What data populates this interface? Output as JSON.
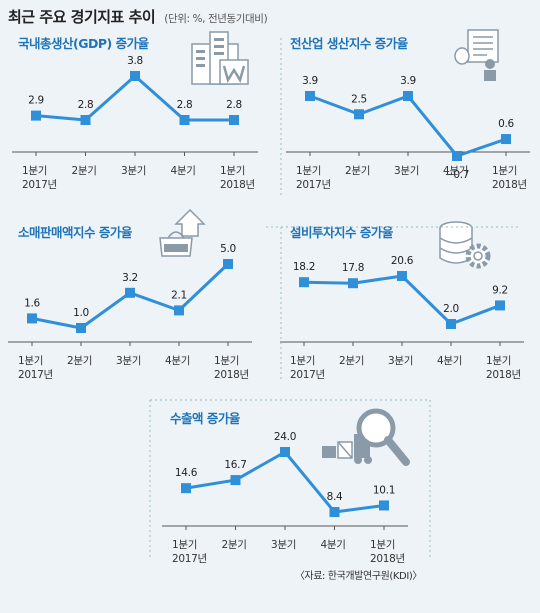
{
  "header": {
    "title": "최근 주요 경기지표 추이",
    "unit": "(단위: %, 전년동기대비)"
  },
  "source": "〈자료: 한국개발연구원(KDI)〉",
  "chart_data": [
    {
      "type": "line",
      "title": "국내총생산(GDP) 증가율",
      "categories": [
        "1분기|2017년",
        "2분기",
        "3분기",
        "4분기",
        "1분기|2018년"
      ],
      "values": [
        2.9,
        2.8,
        3.8,
        2.8,
        2.8
      ],
      "labels": [
        "2.9",
        "2.8",
        "3.8",
        "2.8",
        "2.8"
      ],
      "color": "#2f8fd8",
      "icon": "building-document-icon"
    },
    {
      "type": "line",
      "title": "전산업 생산지수 증가율",
      "categories": [
        "1분기|2017년",
        "2분기",
        "3분기",
        "4분기",
        "1분기|2018년"
      ],
      "values": [
        3.9,
        2.5,
        3.9,
        -0.7,
        0.6
      ],
      "labels": [
        "3.9",
        "2.5",
        "3.9",
        "-0.7",
        "0.6"
      ],
      "color": "#2f8fd8",
      "icon": "worker-document-icon"
    },
    {
      "type": "line",
      "title": "소매판매액지수 증가율",
      "categories": [
        "1분기|2017년",
        "2분기",
        "3분기",
        "4분기",
        "1분기|2018년"
      ],
      "values": [
        1.6,
        1.0,
        3.2,
        2.1,
        5.0
      ],
      "labels": [
        "1.6",
        "1.0",
        "3.2",
        "2.1",
        "5.0"
      ],
      "color": "#2f8fd8",
      "icon": "shopping-bag-icon"
    },
    {
      "type": "line",
      "title": "설비투자지수 증가율",
      "categories": [
        "1분기|2017년",
        "2분기",
        "3분기",
        "4분기",
        "1분기|2018년"
      ],
      "values": [
        18.2,
        17.8,
        20.6,
        2.0,
        9.2
      ],
      "labels": [
        "18.2",
        "17.8",
        "20.6",
        "2.0",
        "9.2"
      ],
      "color": "#2f8fd8",
      "icon": "database-gear-icon"
    },
    {
      "type": "line",
      "title": "수출액 증가율",
      "categories": [
        "1분기|2017년",
        "2분기",
        "3분기",
        "4분기",
        "1분기|2018년"
      ],
      "values": [
        14.6,
        16.7,
        24.0,
        8.4,
        10.1
      ],
      "labels": [
        "14.6",
        "16.7",
        "24.0",
        "8.4",
        "10.1"
      ],
      "color": "#2f8fd8",
      "icon": "magnifier-forklift-icon"
    }
  ]
}
